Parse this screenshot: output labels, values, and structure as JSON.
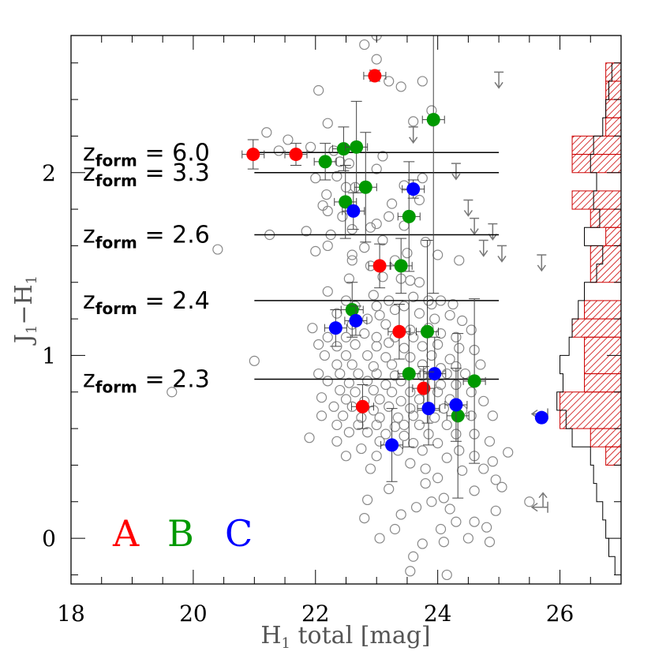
{
  "chart_data": {
    "type": "scatter",
    "title": "",
    "xlabel": "H",
    "xlabel_sub": "1",
    "xlabel_rest": " total [mag]",
    "ylabel": "J",
    "ylabel_sub": "1",
    "ylabel_mid": "−H",
    "ylabel_sub2": "1",
    "xlim": [
      18,
      27
    ],
    "ylim": [
      -0.25,
      2.75
    ],
    "xticks": [
      18,
      20,
      22,
      24,
      26
    ],
    "xtick_labels": [
      "18",
      "20",
      "22",
      "24",
      "26"
    ],
    "yticks": [
      0,
      1,
      2
    ],
    "ytick_labels": [
      "0",
      "1",
      "2"
    ],
    "colors": {
      "A": "#ff0000",
      "B": "#009900",
      "C": "#0000ff",
      "field": "#888888",
      "hist": "#cc0000"
    },
    "legend": [
      {
        "label": "A",
        "color": "#ff0000"
      },
      {
        "label": "B",
        "color": "#009900"
      },
      {
        "label": "C",
        "color": "#0000ff"
      }
    ],
    "zform_lines": [
      {
        "z": "6.0",
        "y": 2.11,
        "x_end": 25.0
      },
      {
        "z": "3.3",
        "y": 2.0,
        "x_end": 25.0
      },
      {
        "z": "2.6",
        "y": 1.66,
        "x_end": 25.0
      },
      {
        "z": "2.4",
        "y": 1.3,
        "x_end": 25.0
      },
      {
        "z": "2.3",
        "y": 0.87,
        "x_end": 25.0
      }
    ],
    "zform_prefix": "z",
    "zform_sub": "form",
    "zform_eq": "=",
    "series": [
      {
        "name": "A",
        "color": "#ff0000",
        "points": [
          {
            "x": 20.98,
            "y": 2.1,
            "yerr": 0.08
          },
          {
            "x": 21.68,
            "y": 2.1,
            "yerr": 0.06
          },
          {
            "x": 22.97,
            "y": 2.53,
            "yerr": 0.03
          },
          {
            "x": 23.05,
            "y": 1.49,
            "yerr": 0.12
          },
          {
            "x": 23.37,
            "y": 1.13,
            "yerr": 0.15
          },
          {
            "x": 23.77,
            "y": 0.82,
            "yerr": 0.12
          },
          {
            "x": 22.77,
            "y": 0.72,
            "yerr": 0.12
          }
        ]
      },
      {
        "name": "B",
        "color": "#009900",
        "points": [
          {
            "x": 22.16,
            "y": 2.06,
            "yerr": 0.1
          },
          {
            "x": 22.46,
            "y": 2.13,
            "yerr": 0.12
          },
          {
            "x": 22.67,
            "y": 2.14,
            "yerr": 0.25
          },
          {
            "x": 22.82,
            "y": 1.92,
            "yerr": 0.3
          },
          {
            "x": 22.49,
            "y": 1.84,
            "yerr": 0.2
          },
          {
            "x": 23.93,
            "y": 2.29,
            "yerr": 0.95
          },
          {
            "x": 23.53,
            "y": 1.76,
            "yerr": 0.3
          },
          {
            "x": 23.4,
            "y": 1.49,
            "yerr": 0.15
          },
          {
            "x": 22.6,
            "y": 1.25,
            "yerr": 0.15
          },
          {
            "x": 23.83,
            "y": 1.13,
            "yerr": 0.5
          },
          {
            "x": 23.53,
            "y": 0.9,
            "yerr": 0.4
          },
          {
            "x": 24.33,
            "y": 0.67,
            "yerr": 0.45
          },
          {
            "x": 24.6,
            "y": 0.86,
            "yerr": 0.45
          }
        ]
      },
      {
        "name": "C",
        "color": "#0000ff",
        "points": [
          {
            "x": 23.6,
            "y": 1.91,
            "yerr": 0.05
          },
          {
            "x": 22.62,
            "y": 1.79,
            "yerr": 0.1
          },
          {
            "x": 22.66,
            "y": 1.19,
            "yerr": 0.08
          },
          {
            "x": 22.33,
            "y": 1.15,
            "yerr": 0.1
          },
          {
            "x": 23.95,
            "y": 0.9,
            "yerr": 0.2
          },
          {
            "x": 23.85,
            "y": 0.71,
            "yerr": 0.2
          },
          {
            "x": 24.3,
            "y": 0.73,
            "yerr": 0.2
          },
          {
            "x": 23.25,
            "y": 0.51,
            "yerr": 0.2
          },
          {
            "x": 25.7,
            "y": 0.66,
            "yerr": 0
          }
        ]
      }
    ],
    "upper_limits": [
      {
        "x": 25.0,
        "y": 2.55
      },
      {
        "x": 23.6,
        "y": 2.25
      },
      {
        "x": 24.3,
        "y": 2.05
      },
      {
        "x": 24.5,
        "y": 1.85
      },
      {
        "x": 24.6,
        "y": 1.75
      },
      {
        "x": 24.9,
        "y": 1.72
      },
      {
        "x": 24.75,
        "y": 1.63
      },
      {
        "x": 25.05,
        "y": 1.6
      },
      {
        "x": 25.7,
        "y": 1.55
      }
    ],
    "lower_limits_left": [
      {
        "x": 25.8,
        "y": 0.68
      },
      {
        "x": 25.8,
        "y": 0.17
      }
    ],
    "histogram_black": [
      {
        "y0": 2.5,
        "y1": 2.6,
        "x": 26.85
      },
      {
        "y0": 2.4,
        "y1": 2.5,
        "x": 26.8
      },
      {
        "y0": 2.3,
        "y1": 2.4,
        "x": 26.75
      },
      {
        "y0": 2.2,
        "y1": 2.3,
        "x": 26.7
      },
      {
        "y0": 2.1,
        "y1": 2.2,
        "x": 26.55
      },
      {
        "y0": 2.0,
        "y1": 2.1,
        "x": 26.5
      },
      {
        "y0": 1.9,
        "y1": 2.0,
        "x": 26.6
      },
      {
        "y0": 1.8,
        "y1": 1.9,
        "x": 26.55
      },
      {
        "y0": 1.7,
        "y1": 1.8,
        "x": 26.65
      },
      {
        "y0": 1.6,
        "y1": 1.7,
        "x": 26.4
      },
      {
        "y0": 1.5,
        "y1": 1.6,
        "x": 26.7
      },
      {
        "y0": 1.4,
        "y1": 1.5,
        "x": 26.6
      },
      {
        "y0": 1.3,
        "y1": 1.4,
        "x": 26.4
      },
      {
        "y0": 1.2,
        "y1": 1.3,
        "x": 26.3
      },
      {
        "y0": 1.1,
        "y1": 1.2,
        "x": 26.2
      },
      {
        "y0": 1.0,
        "y1": 1.1,
        "x": 26.15
      },
      {
        "y0": 0.9,
        "y1": 1.0,
        "x": 26.0
      },
      {
        "y0": 0.8,
        "y1": 0.9,
        "x": 26.05
      },
      {
        "y0": 0.7,
        "y1": 0.8,
        "x": 25.95
      },
      {
        "y0": 0.6,
        "y1": 0.7,
        "x": 26.1
      },
      {
        "y0": 0.5,
        "y1": 0.6,
        "x": 26.2
      },
      {
        "y0": 0.4,
        "y1": 0.5,
        "x": 26.5
      },
      {
        "y0": 0.3,
        "y1": 0.4,
        "x": 26.55
      },
      {
        "y0": 0.2,
        "y1": 0.3,
        "x": 26.6
      },
      {
        "y0": 0.1,
        "y1": 0.2,
        "x": 26.7
      },
      {
        "y0": 0.0,
        "y1": 0.1,
        "x": 26.75
      },
      {
        "y0": -0.1,
        "y1": 0.0,
        "x": 26.8
      },
      {
        "y0": -0.2,
        "y1": -0.1,
        "x": 26.9
      }
    ],
    "histogram_red": [
      {
        "y0": 2.5,
        "y1": 2.6,
        "x": 26.75
      },
      {
        "y0": 2.4,
        "y1": 2.5,
        "x": 26.75
      },
      {
        "y0": 2.3,
        "y1": 2.4,
        "x": 26.75
      },
      {
        "y0": 2.2,
        "y1": 2.3,
        "x": 26.75
      },
      {
        "y0": 2.1,
        "y1": 2.2,
        "x": 26.2
      },
      {
        "y0": 2.0,
        "y1": 2.1,
        "x": 26.2
      },
      {
        "y0": 1.8,
        "y1": 1.9,
        "x": 26.2
      },
      {
        "y0": 1.7,
        "y1": 1.8,
        "x": 26.5
      },
      {
        "y0": 1.6,
        "y1": 1.7,
        "x": 26.75
      },
      {
        "y0": 1.4,
        "y1": 1.6,
        "x": 26.5
      },
      {
        "y0": 1.2,
        "y1": 1.3,
        "x": 26.4
      },
      {
        "y0": 1.1,
        "y1": 1.2,
        "x": 26.2
      },
      {
        "y0": 0.9,
        "y1": 1.1,
        "x": 26.4
      },
      {
        "y0": 0.8,
        "y1": 0.9,
        "x": 26.4
      },
      {
        "y0": 0.6,
        "y1": 0.8,
        "x": 26.0
      },
      {
        "y0": 0.5,
        "y1": 0.6,
        "x": 26.5
      },
      {
        "y0": 0.4,
        "y1": 0.5,
        "x": 26.75
      }
    ],
    "field_points": [
      [
        23.0,
        2.75
      ],
      [
        22.8,
        2.7
      ],
      [
        23.0,
        2.62
      ],
      [
        22.05,
        2.45
      ],
      [
        23.2,
        2.5
      ],
      [
        23.75,
        2.5
      ],
      [
        23.4,
        2.47
      ],
      [
        23.9,
        2.34
      ],
      [
        23.6,
        2.28
      ],
      [
        23.92,
        2.28
      ],
      [
        21.55,
        2.18
      ],
      [
        21.2,
        2.22
      ],
      [
        21.4,
        2.12
      ],
      [
        22.2,
        2.27
      ],
      [
        22.4,
        2.06
      ],
      [
        21.92,
        2.14
      ],
      [
        22.3,
        2.12
      ],
      [
        23.1,
        2.09
      ],
      [
        22.55,
        2.05
      ],
      [
        23.0,
        2.02
      ],
      [
        22.0,
        1.97
      ],
      [
        22.35,
        1.98
      ],
      [
        23.75,
        1.97
      ],
      [
        22.5,
        1.92
      ],
      [
        22.65,
        1.92
      ],
      [
        23.45,
        1.93
      ],
      [
        22.18,
        1.88
      ],
      [
        23.25,
        1.83
      ],
      [
        23.7,
        1.85
      ],
      [
        22.12,
        1.82
      ],
      [
        22.2,
        1.79
      ],
      [
        22.44,
        1.76
      ],
      [
        22.9,
        1.7
      ],
      [
        21.85,
        1.68
      ],
      [
        22.6,
        1.69
      ],
      [
        23.0,
        1.72
      ],
      [
        23.2,
        1.76
      ],
      [
        23.45,
        1.71
      ],
      [
        23.8,
        1.62
      ],
      [
        21.25,
        1.66
      ],
      [
        22.2,
        1.6
      ],
      [
        22.0,
        1.57
      ],
      [
        22.25,
        1.66
      ],
      [
        22.8,
        1.59
      ],
      [
        20.4,
        1.58
      ],
      [
        23.5,
        1.56
      ],
      [
        24.0,
        1.55
      ],
      [
        24.35,
        1.52
      ],
      [
        22.6,
        1.52
      ],
      [
        23.3,
        1.52
      ],
      [
        22.9,
        1.49
      ],
      [
        22.55,
        1.42
      ],
      [
        23.1,
        1.43
      ],
      [
        23.55,
        1.41
      ],
      [
        23.7,
        1.4
      ],
      [
        22.2,
        1.35
      ],
      [
        22.5,
        1.3
      ],
      [
        22.95,
        1.33
      ],
      [
        23.2,
        1.3
      ],
      [
        23.6,
        1.32
      ],
      [
        23.85,
        1.3
      ],
      [
        24.05,
        1.3
      ],
      [
        24.25,
        1.28
      ],
      [
        22.65,
        1.27
      ],
      [
        23.0,
        1.27
      ],
      [
        23.45,
        1.27
      ],
      [
        23.9,
        1.28
      ],
      [
        22.35,
        1.23
      ],
      [
        23.05,
        1.22
      ],
      [
        23.3,
        1.25
      ],
      [
        22.85,
        1.2
      ],
      [
        23.7,
        1.23
      ],
      [
        23.95,
        1.2
      ],
      [
        24.2,
        1.22
      ],
      [
        24.4,
        1.19
      ],
      [
        22.6,
        1.17
      ],
      [
        23.15,
        1.17
      ],
      [
        21.95,
        1.15
      ],
      [
        23.55,
        1.14
      ],
      [
        23.85,
        1.15
      ],
      [
        24.05,
        1.12
      ],
      [
        24.55,
        1.14
      ],
      [
        22.2,
        1.1
      ],
      [
        22.5,
        1.1
      ],
      [
        22.8,
        1.12
      ],
      [
        23.0,
        1.1
      ],
      [
        23.3,
        1.1
      ],
      [
        23.6,
        1.1
      ],
      [
        24.3,
        1.1
      ],
      [
        22.05,
        1.06
      ],
      [
        22.35,
        1.05
      ],
      [
        22.65,
        1.06
      ],
      [
        23.0,
        1.05
      ],
      [
        23.2,
        1.07
      ],
      [
        23.45,
        1.04
      ],
      [
        23.75,
        1.05
      ],
      [
        24.0,
        1.06
      ],
      [
        24.35,
        1.04
      ],
      [
        24.6,
        1.03
      ],
      [
        22.15,
        1.0
      ],
      [
        22.5,
        1.0
      ],
      [
        22.85,
        1.0
      ],
      [
        23.15,
        0.99
      ],
      [
        23.55,
        0.99
      ],
      [
        23.9,
        1.0
      ],
      [
        24.2,
        0.98
      ],
      [
        22.35,
        0.95
      ],
      [
        22.6,
        0.95
      ],
      [
        22.95,
        0.94
      ],
      [
        23.25,
        0.95
      ],
      [
        23.75,
        0.95
      ],
      [
        24.05,
        0.93
      ],
      [
        24.3,
        0.94
      ],
      [
        24.7,
        0.95
      ],
      [
        21.0,
        0.97
      ],
      [
        22.05,
        0.9
      ],
      [
        22.4,
        0.9
      ],
      [
        22.7,
        0.9
      ],
      [
        23.0,
        0.9
      ],
      [
        23.3,
        0.89
      ],
      [
        23.75,
        0.89
      ],
      [
        24.15,
        0.9
      ],
      [
        24.45,
        0.9
      ],
      [
        22.2,
        0.86
      ],
      [
        22.55,
        0.85
      ],
      [
        22.85,
        0.86
      ],
      [
        23.15,
        0.84
      ],
      [
        23.4,
        0.86
      ],
      [
        24.05,
        0.84
      ],
      [
        24.3,
        0.84
      ],
      [
        22.4,
        0.81
      ],
      [
        22.65,
        0.8
      ],
      [
        22.95,
        0.81
      ],
      [
        23.25,
        0.8
      ],
      [
        23.55,
        0.8
      ],
      [
        24.0,
        0.8
      ],
      [
        24.55,
        0.8
      ],
      [
        22.1,
        0.77
      ],
      [
        22.5,
        0.76
      ],
      [
        22.8,
        0.75
      ],
      [
        23.05,
        0.76
      ],
      [
        23.4,
        0.75
      ],
      [
        23.7,
        0.76
      ],
      [
        24.2,
        0.76
      ],
      [
        24.75,
        0.75
      ],
      [
        22.3,
        0.72
      ],
      [
        22.6,
        0.72
      ],
      [
        22.95,
        0.7
      ],
      [
        23.2,
        0.72
      ],
      [
        23.55,
        0.71
      ],
      [
        24.1,
        0.71
      ],
      [
        24.4,
        0.7
      ],
      [
        22.1,
        0.67
      ],
      [
        22.45,
        0.67
      ],
      [
        22.75,
        0.66
      ],
      [
        23.05,
        0.66
      ],
      [
        23.35,
        0.66
      ],
      [
        23.6,
        0.67
      ],
      [
        23.95,
        0.66
      ],
      [
        24.55,
        0.67
      ],
      [
        24.9,
        0.67
      ],
      [
        22.35,
        0.62
      ],
      [
        22.7,
        0.62
      ],
      [
        23.0,
        0.62
      ],
      [
        23.3,
        0.61
      ],
      [
        23.7,
        0.62
      ],
      [
        24.15,
        0.62
      ],
      [
        22.55,
        0.58
      ],
      [
        22.85,
        0.58
      ],
      [
        23.15,
        0.57
      ],
      [
        23.45,
        0.56
      ],
      [
        23.85,
        0.57
      ],
      [
        24.3,
        0.57
      ],
      [
        24.6,
        0.57
      ],
      [
        21.9,
        0.55
      ],
      [
        22.35,
        0.53
      ],
      [
        23.05,
        0.53
      ],
      [
        23.6,
        0.52
      ],
      [
        24.0,
        0.52
      ],
      [
        24.85,
        0.53
      ],
      [
        22.75,
        0.49
      ],
      [
        23.35,
        0.48
      ],
      [
        23.75,
        0.48
      ],
      [
        24.35,
        0.48
      ],
      [
        25.15,
        0.47
      ],
      [
        22.5,
        0.45
      ],
      [
        23.0,
        0.45
      ],
      [
        24.15,
        0.44
      ],
      [
        24.6,
        0.45
      ],
      [
        23.55,
        0.41
      ],
      [
        24.9,
        0.42
      ],
      [
        22.9,
        0.38
      ],
      [
        23.8,
        0.38
      ],
      [
        24.4,
        0.37
      ],
      [
        24.75,
        0.38
      ],
      [
        24.0,
        0.33
      ],
      [
        24.95,
        0.32
      ],
      [
        23.8,
        0.3
      ],
      [
        25.05,
        0.28
      ],
      [
        23.2,
        0.27
      ],
      [
        24.6,
        0.26
      ],
      [
        24.1,
        0.22
      ],
      [
        23.9,
        0.2
      ],
      [
        25.5,
        0.2
      ],
      [
        22.85,
        0.21
      ],
      [
        23.65,
        0.17
      ],
      [
        24.2,
        0.16
      ],
      [
        24.95,
        0.15
      ],
      [
        23.4,
        0.13
      ],
      [
        22.8,
        0.11
      ],
      [
        24.3,
        0.09
      ],
      [
        24.6,
        0.09
      ],
      [
        24.8,
        0.06
      ],
      [
        24.05,
        0.05
      ],
      [
        23.3,
        0.05
      ],
      [
        23.05,
        0.0
      ],
      [
        24.5,
        0.0
      ],
      [
        24.1,
        -0.02
      ],
      [
        24.85,
        -0.02
      ],
      [
        23.75,
        -0.03
      ],
      [
        23.6,
        -0.1
      ],
      [
        23.55,
        -0.18
      ],
      [
        24.15,
        -0.2
      ],
      [
        19.65,
        0.8
      ],
      [
        22.6,
        1.55
      ],
      [
        23.4,
        1.42
      ],
      [
        23.1,
        1.63
      ],
      [
        23.45,
        0.62
      ]
    ]
  }
}
